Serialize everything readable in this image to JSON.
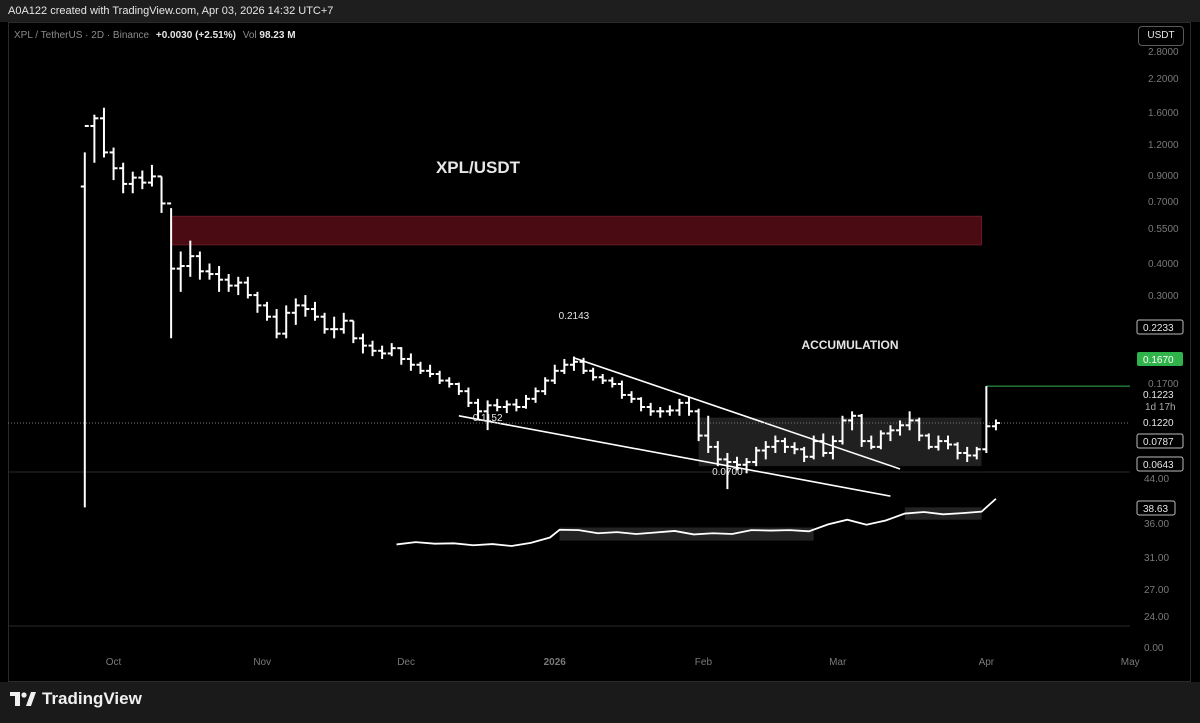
{
  "header": {
    "credit": "A0A122 created with TradingView.com, Apr 03, 2026 14:32 UTC+7",
    "symbol": "XPL / TetherUS · 2D · Binance",
    "change": "+0.0030 (+2.51%)",
    "volume_label": "Vol",
    "volume_value": "98.23 M",
    "unit_button": "USDT"
  },
  "footer": {
    "brand": "TradingView"
  },
  "colors": {
    "background": "#000000",
    "candles": "#ffffff",
    "supply_zone": "#4a0c12",
    "last_price": "#2fb34a",
    "accumulation_box": "#3a3a3a"
  },
  "icons": {
    "brand_logo": "tradingview-logo-icon"
  },
  "chart_data": [
    {
      "type": "ohlc",
      "title": "XPL/USDT",
      "scale": "log",
      "grid": false,
      "x_ticks": [
        "Oct",
        "Nov",
        "Dec",
        "2026",
        "Feb",
        "Mar",
        "Apr",
        "May"
      ],
      "y_ticks": [
        "2.8000",
        "2.2000",
        "1.6000",
        "1.2000",
        "0.9000",
        "0.7000",
        "0.5500",
        "0.4000",
        "0.3000",
        "0.1700"
      ],
      "ylim": [
        0.06,
        2.8
      ],
      "price_tags": [
        "0.2233",
        "0.1670",
        "0.1223",
        "1d 17h",
        "0.1220",
        "0.0787",
        "0.0643"
      ],
      "annotations": [
        "ACCUMULATION",
        "0.2143",
        "0.1152",
        "0.0700"
      ],
      "x_range": [
        "2025-09-24",
        "2026-05-07"
      ],
      "bars": [
        {
          "t": "2025-09-25",
          "o": 0.9,
          "h": 1.2,
          "l": 0.06,
          "c": 1.5
        },
        {
          "t": "2025-09-27",
          "o": 1.5,
          "h": 1.65,
          "l": 1.1,
          "c": 1.6
        },
        {
          "t": "2025-09-29",
          "o": 1.6,
          "h": 1.75,
          "l": 1.15,
          "c": 1.2
        },
        {
          "t": "2025-10-01",
          "o": 1.2,
          "h": 1.25,
          "l": 0.95,
          "c": 1.05
        },
        {
          "t": "2025-10-03",
          "o": 1.05,
          "h": 1.1,
          "l": 0.85,
          "c": 0.92
        },
        {
          "t": "2025-10-05",
          "o": 0.92,
          "h": 1.02,
          "l": 0.85,
          "c": 0.97
        },
        {
          "t": "2025-10-07",
          "o": 0.97,
          "h": 1.03,
          "l": 0.88,
          "c": 0.93
        },
        {
          "t": "2025-10-09",
          "o": 0.93,
          "h": 1.08,
          "l": 0.9,
          "c": 0.98
        },
        {
          "t": "2025-10-11",
          "o": 0.98,
          "h": 0.98,
          "l": 0.72,
          "c": 0.78
        },
        {
          "t": "2025-10-13",
          "o": 0.78,
          "h": 0.75,
          "l": 0.25,
          "c": 0.45
        },
        {
          "t": "2025-10-15",
          "o": 0.45,
          "h": 0.52,
          "l": 0.37,
          "c": 0.46
        },
        {
          "t": "2025-10-17",
          "o": 0.46,
          "h": 0.57,
          "l": 0.42,
          "c": 0.5
        },
        {
          "t": "2025-10-19",
          "o": 0.5,
          "h": 0.52,
          "l": 0.41,
          "c": 0.44
        },
        {
          "t": "2025-10-21",
          "o": 0.44,
          "h": 0.47,
          "l": 0.41,
          "c": 0.43
        },
        {
          "t": "2025-10-23",
          "o": 0.43,
          "h": 0.46,
          "l": 0.37,
          "c": 0.41
        },
        {
          "t": "2025-10-25",
          "o": 0.41,
          "h": 0.43,
          "l": 0.37,
          "c": 0.39
        },
        {
          "t": "2025-10-27",
          "o": 0.39,
          "h": 0.42,
          "l": 0.36,
          "c": 0.4
        },
        {
          "t": "2025-10-29",
          "o": 0.4,
          "h": 0.42,
          "l": 0.35,
          "c": 0.36
        },
        {
          "t": "2025-10-31",
          "o": 0.36,
          "h": 0.37,
          "l": 0.31,
          "c": 0.33
        },
        {
          "t": "2025-11-02",
          "o": 0.33,
          "h": 0.34,
          "l": 0.29,
          "c": 0.3
        },
        {
          "t": "2025-11-04",
          "o": 0.3,
          "h": 0.32,
          "l": 0.25,
          "c": 0.26
        },
        {
          "t": "2025-11-06",
          "o": 0.26,
          "h": 0.33,
          "l": 0.25,
          "c": 0.31
        },
        {
          "t": "2025-11-08",
          "o": 0.31,
          "h": 0.35,
          "l": 0.28,
          "c": 0.33
        },
        {
          "t": "2025-11-10",
          "o": 0.33,
          "h": 0.36,
          "l": 0.3,
          "c": 0.32
        },
        {
          "t": "2025-11-12",
          "o": 0.32,
          "h": 0.34,
          "l": 0.29,
          "c": 0.3
        },
        {
          "t": "2025-11-14",
          "o": 0.3,
          "h": 0.31,
          "l": 0.26,
          "c": 0.27
        },
        {
          "t": "2025-11-16",
          "o": 0.27,
          "h": 0.3,
          "l": 0.25,
          "c": 0.27
        },
        {
          "t": "2025-11-18",
          "o": 0.27,
          "h": 0.31,
          "l": 0.26,
          "c": 0.29
        },
        {
          "t": "2025-11-20",
          "o": 0.29,
          "h": 0.29,
          "l": 0.24,
          "c": 0.25
        },
        {
          "t": "2025-11-22",
          "o": 0.25,
          "h": 0.26,
          "l": 0.22,
          "c": 0.235
        },
        {
          "t": "2025-11-24",
          "o": 0.235,
          "h": 0.245,
          "l": 0.215,
          "c": 0.225
        },
        {
          "t": "2025-11-26",
          "o": 0.225,
          "h": 0.235,
          "l": 0.21,
          "c": 0.22
        },
        {
          "t": "2025-11-28",
          "o": 0.22,
          "h": 0.24,
          "l": 0.215,
          "c": 0.23
        },
        {
          "t": "2025-11-30",
          "o": 0.23,
          "h": 0.232,
          "l": 0.2,
          "c": 0.21
        },
        {
          "t": "2025-12-02",
          "o": 0.21,
          "h": 0.22,
          "l": 0.19,
          "c": 0.2
        },
        {
          "t": "2025-12-04",
          "o": 0.2,
          "h": 0.205,
          "l": 0.185,
          "c": 0.19
        },
        {
          "t": "2025-12-06",
          "o": 0.19,
          "h": 0.2,
          "l": 0.18,
          "c": 0.185
        },
        {
          "t": "2025-12-08",
          "o": 0.185,
          "h": 0.19,
          "l": 0.17,
          "c": 0.175
        },
        {
          "t": "2025-12-10",
          "o": 0.175,
          "h": 0.18,
          "l": 0.165,
          "c": 0.17
        },
        {
          "t": "2025-12-12",
          "o": 0.17,
          "h": 0.172,
          "l": 0.155,
          "c": 0.16
        },
        {
          "t": "2025-12-14",
          "o": 0.16,
          "h": 0.165,
          "l": 0.14,
          "c": 0.145
        },
        {
          "t": "2025-12-16",
          "o": 0.145,
          "h": 0.15,
          "l": 0.125,
          "c": 0.135
        },
        {
          "t": "2025-12-18",
          "o": 0.135,
          "h": 0.148,
          "l": 0.1152,
          "c": 0.142
        },
        {
          "t": "2025-12-20",
          "o": 0.142,
          "h": 0.15,
          "l": 0.135,
          "c": 0.14
        },
        {
          "t": "2025-12-22",
          "o": 0.14,
          "h": 0.148,
          "l": 0.133,
          "c": 0.143
        },
        {
          "t": "2025-12-24",
          "o": 0.143,
          "h": 0.15,
          "l": 0.135,
          "c": 0.14
        },
        {
          "t": "2025-12-26",
          "o": 0.14,
          "h": 0.155,
          "l": 0.138,
          "c": 0.15
        },
        {
          "t": "2025-12-28",
          "o": 0.15,
          "h": 0.165,
          "l": 0.145,
          "c": 0.16
        },
        {
          "t": "2025-12-30",
          "o": 0.16,
          "h": 0.18,
          "l": 0.155,
          "c": 0.175
        },
        {
          "t": "2026-01-01",
          "o": 0.175,
          "h": 0.2,
          "l": 0.17,
          "c": 0.19
        },
        {
          "t": "2026-01-03",
          "o": 0.19,
          "h": 0.21,
          "l": 0.185,
          "c": 0.2
        },
        {
          "t": "2026-01-05",
          "o": 0.2,
          "h": 0.2143,
          "l": 0.19,
          "c": 0.205
        },
        {
          "t": "2026-01-07",
          "o": 0.205,
          "h": 0.212,
          "l": 0.185,
          "c": 0.19
        },
        {
          "t": "2026-01-09",
          "o": 0.19,
          "h": 0.195,
          "l": 0.175,
          "c": 0.18
        },
        {
          "t": "2026-01-11",
          "o": 0.18,
          "h": 0.185,
          "l": 0.17,
          "c": 0.175
        },
        {
          "t": "2026-01-13",
          "o": 0.175,
          "h": 0.18,
          "l": 0.165,
          "c": 0.17
        },
        {
          "t": "2026-01-15",
          "o": 0.17,
          "h": 0.175,
          "l": 0.15,
          "c": 0.155
        },
        {
          "t": "2026-01-17",
          "o": 0.155,
          "h": 0.16,
          "l": 0.145,
          "c": 0.15
        },
        {
          "t": "2026-01-19",
          "o": 0.15,
          "h": 0.152,
          "l": 0.135,
          "c": 0.14
        },
        {
          "t": "2026-01-21",
          "o": 0.14,
          "h": 0.145,
          "l": 0.13,
          "c": 0.135
        },
        {
          "t": "2026-01-23",
          "o": 0.135,
          "h": 0.14,
          "l": 0.128,
          "c": 0.135
        },
        {
          "t": "2026-01-25",
          "o": 0.135,
          "h": 0.142,
          "l": 0.13,
          "c": 0.136
        },
        {
          "t": "2026-01-27",
          "o": 0.136,
          "h": 0.15,
          "l": 0.13,
          "c": 0.145
        },
        {
          "t": "2026-01-29",
          "o": 0.145,
          "h": 0.152,
          "l": 0.13,
          "c": 0.135
        },
        {
          "t": "2026-01-31",
          "o": 0.135,
          "h": 0.138,
          "l": 0.105,
          "c": 0.11
        },
        {
          "t": "2026-02-02",
          "o": 0.11,
          "h": 0.13,
          "l": 0.095,
          "c": 0.1
        },
        {
          "t": "2026-02-04",
          "o": 0.1,
          "h": 0.105,
          "l": 0.085,
          "c": 0.09
        },
        {
          "t": "2026-02-06",
          "o": 0.09,
          "h": 0.095,
          "l": 0.07,
          "c": 0.088
        },
        {
          "t": "2026-02-08",
          "o": 0.088,
          "h": 0.092,
          "l": 0.082,
          "c": 0.086
        },
        {
          "t": "2026-02-10",
          "o": 0.086,
          "h": 0.091,
          "l": 0.08,
          "c": 0.088
        },
        {
          "t": "2026-02-12",
          "o": 0.088,
          "h": 0.1,
          "l": 0.085,
          "c": 0.097
        },
        {
          "t": "2026-02-14",
          "o": 0.097,
          "h": 0.105,
          "l": 0.09,
          "c": 0.1
        },
        {
          "t": "2026-02-16",
          "o": 0.1,
          "h": 0.11,
          "l": 0.095,
          "c": 0.105
        },
        {
          "t": "2026-02-18",
          "o": 0.105,
          "h": 0.108,
          "l": 0.095,
          "c": 0.1
        },
        {
          "t": "2026-02-20",
          "o": 0.1,
          "h": 0.104,
          "l": 0.094,
          "c": 0.098
        },
        {
          "t": "2026-02-22",
          "o": 0.098,
          "h": 0.1,
          "l": 0.088,
          "c": 0.092
        },
        {
          "t": "2026-02-24",
          "o": 0.092,
          "h": 0.11,
          "l": 0.09,
          "c": 0.105
        },
        {
          "t": "2026-02-26",
          "o": 0.105,
          "h": 0.112,
          "l": 0.092,
          "c": 0.095
        },
        {
          "t": "2026-02-28",
          "o": 0.095,
          "h": 0.11,
          "l": 0.09,
          "c": 0.105
        },
        {
          "t": "2026-03-02",
          "o": 0.105,
          "h": 0.13,
          "l": 0.102,
          "c": 0.125
        },
        {
          "t": "2026-03-04",
          "o": 0.125,
          "h": 0.135,
          "l": 0.115,
          "c": 0.13
        },
        {
          "t": "2026-03-06",
          "o": 0.13,
          "h": 0.132,
          "l": 0.1,
          "c": 0.105
        },
        {
          "t": "2026-03-08",
          "o": 0.105,
          "h": 0.11,
          "l": 0.098,
          "c": 0.1
        },
        {
          "t": "2026-03-10",
          "o": 0.1,
          "h": 0.115,
          "l": 0.098,
          "c": 0.112
        },
        {
          "t": "2026-03-12",
          "o": 0.112,
          "h": 0.12,
          "l": 0.105,
          "c": 0.115
        },
        {
          "t": "2026-03-14",
          "o": 0.115,
          "h": 0.125,
          "l": 0.11,
          "c": 0.12
        },
        {
          "t": "2026-03-16",
          "o": 0.12,
          "h": 0.135,
          "l": 0.115,
          "c": 0.125
        },
        {
          "t": "2026-03-18",
          "o": 0.125,
          "h": 0.128,
          "l": 0.105,
          "c": 0.11
        },
        {
          "t": "2026-03-20",
          "o": 0.11,
          "h": 0.112,
          "l": 0.098,
          "c": 0.1
        },
        {
          "t": "2026-03-22",
          "o": 0.1,
          "h": 0.11,
          "l": 0.097,
          "c": 0.105
        },
        {
          "t": "2026-03-24",
          "o": 0.105,
          "h": 0.11,
          "l": 0.098,
          "c": 0.102
        },
        {
          "t": "2026-03-26",
          "o": 0.102,
          "h": 0.104,
          "l": 0.09,
          "c": 0.095
        },
        {
          "t": "2026-03-28",
          "o": 0.095,
          "h": 0.1,
          "l": 0.088,
          "c": 0.093
        },
        {
          "t": "2026-03-30",
          "o": 0.093,
          "h": 0.1,
          "l": 0.09,
          "c": 0.098
        },
        {
          "t": "2026-04-01",
          "o": 0.098,
          "h": 0.167,
          "l": 0.095,
          "c": 0.119
        },
        {
          "t": "2026-04-03",
          "o": 0.119,
          "h": 0.126,
          "l": 0.115,
          "c": 0.1223
        }
      ],
      "zones": [
        {
          "from": "2025-10-13",
          "to": "2026-03-31",
          "low": 0.55,
          "high": 0.7
        }
      ]
    },
    {
      "type": "line",
      "ylim": [
        0,
        44
      ],
      "y_ticks": [
        "44.00",
        "38.63",
        "36.00",
        "31.00",
        "27.00",
        "24.00",
        "0.00"
      ],
      "last_value": "38.63",
      "x": [
        "2025-11-29",
        "2025-12-03",
        "2025-12-07",
        "2025-12-11",
        "2025-12-15",
        "2025-12-19",
        "2025-12-23",
        "2025-12-27",
        "2025-12-31",
        "2026-01-02",
        "2026-01-06",
        "2026-01-10",
        "2026-01-14",
        "2026-01-18",
        "2026-01-22",
        "2026-01-26",
        "2026-01-30",
        "2026-02-03",
        "2026-02-07",
        "2026-02-11",
        "2026-02-15",
        "2026-02-19",
        "2026-02-23",
        "2026-02-27",
        "2026-03-03",
        "2026-03-07",
        "2026-03-11",
        "2026-03-15",
        "2026-03-19",
        "2026-03-23",
        "2026-03-27",
        "2026-03-31",
        "2026-04-03"
      ],
      "values": [
        26.8,
        27.4,
        27.0,
        27.1,
        26.6,
        26.9,
        26.4,
        27.2,
        28.6,
        30.6,
        30.5,
        29.7,
        30.0,
        29.5,
        29.9,
        30.3,
        29.4,
        29.7,
        29.5,
        30.5,
        30.4,
        30.5,
        30.2,
        32.0,
        33.2,
        31.9,
        33.0,
        34.8,
        35.2,
        34.6,
        34.9,
        35.3,
        38.63
      ]
    }
  ]
}
